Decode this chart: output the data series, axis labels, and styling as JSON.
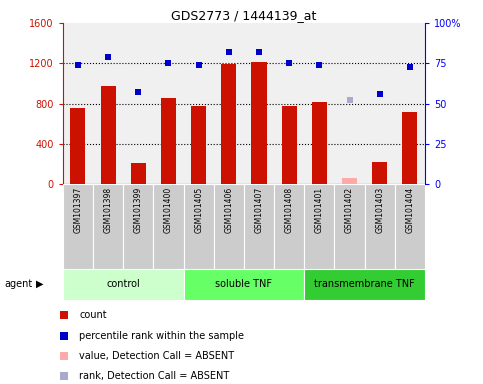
{
  "title": "GDS2773 / 1444139_at",
  "samples": [
    "GSM101397",
    "GSM101398",
    "GSM101399",
    "GSM101400",
    "GSM101405",
    "GSM101406",
    "GSM101407",
    "GSM101408",
    "GSM101401",
    "GSM101402",
    "GSM101403",
    "GSM101404"
  ],
  "count_values": [
    760,
    975,
    215,
    855,
    780,
    1195,
    1215,
    775,
    820,
    null,
    220,
    720
  ],
  "count_absent": [
    null,
    null,
    null,
    null,
    null,
    null,
    null,
    null,
    null,
    65,
    null,
    null
  ],
  "rank_values": [
    74,
    79,
    57,
    75,
    74,
    82,
    82,
    75,
    74,
    null,
    56,
    73
  ],
  "rank_absent": [
    null,
    null,
    null,
    null,
    null,
    null,
    null,
    null,
    null,
    52,
    null,
    null
  ],
  "groups": [
    {
      "label": "control",
      "start": 0,
      "end": 4,
      "color": "#ccffcc"
    },
    {
      "label": "soluble TNF",
      "start": 4,
      "end": 8,
      "color": "#66ff66"
    },
    {
      "label": "transmembrane TNF",
      "start": 8,
      "end": 12,
      "color": "#33cc33"
    }
  ],
  "ylim_left": [
    0,
    1600
  ],
  "ylim_right": [
    0,
    100
  ],
  "yticks_left": [
    0,
    400,
    800,
    1200,
    1600
  ],
  "yticks_right": [
    0,
    25,
    50,
    75,
    100
  ],
  "bar_color": "#cc1100",
  "bar_absent_color": "#ffaaaa",
  "dot_color": "#0000cc",
  "dot_absent_color": "#aaaacc",
  "background_color": "#ffffff",
  "xlabel_area_color": "#cccccc",
  "bar_width": 0.5,
  "figsize": [
    4.83,
    3.84
  ],
  "dpi": 100
}
